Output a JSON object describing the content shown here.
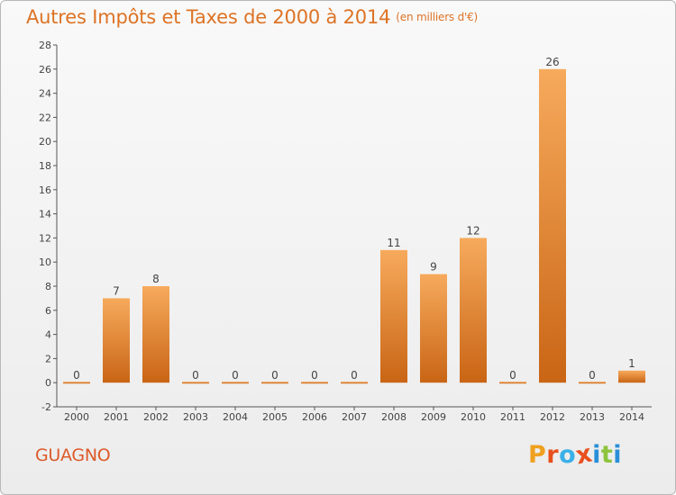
{
  "page": {
    "title": "Autres Impôts et Taxes de 2000 à 2014",
    "unit_note": "(en milliers d'€)",
    "commune": "GUAGNO",
    "logo_letters": [
      "P",
      "r",
      "o",
      "x",
      "i",
      "t",
      "i"
    ],
    "logo_colors": [
      "#f0a020",
      "#e8501e",
      "#3ab0e8",
      "#e8501e",
      "#2a8fd8",
      "#8cc43c",
      "#2a8fd8"
    ]
  },
  "colors": {
    "bar_top": "#f7aa5c",
    "bar_bottom": "#c96515",
    "title": "#dd7325",
    "commune": "#dd5a2a",
    "axis": "#555555"
  },
  "chart_data": {
    "type": "bar",
    "title": "Autres Impôts et Taxes de 2000 à 2014",
    "subtitle": "(en milliers d'€)",
    "xlabel": "",
    "ylabel": "",
    "categories": [
      "2000",
      "2001",
      "2002",
      "2003",
      "2004",
      "2005",
      "2006",
      "2007",
      "2008",
      "2009",
      "2010",
      "2011",
      "2012",
      "2013",
      "2014"
    ],
    "values": [
      0,
      7,
      8,
      0,
      0,
      0,
      0,
      0,
      11,
      9,
      12,
      0,
      26,
      0,
      1
    ],
    "ylim": [
      -2,
      28
    ],
    "yticks": [
      -2,
      0,
      2,
      4,
      6,
      8,
      10,
      12,
      14,
      16,
      18,
      20,
      22,
      24,
      26,
      28
    ],
    "grid": false,
    "legend": "none"
  }
}
